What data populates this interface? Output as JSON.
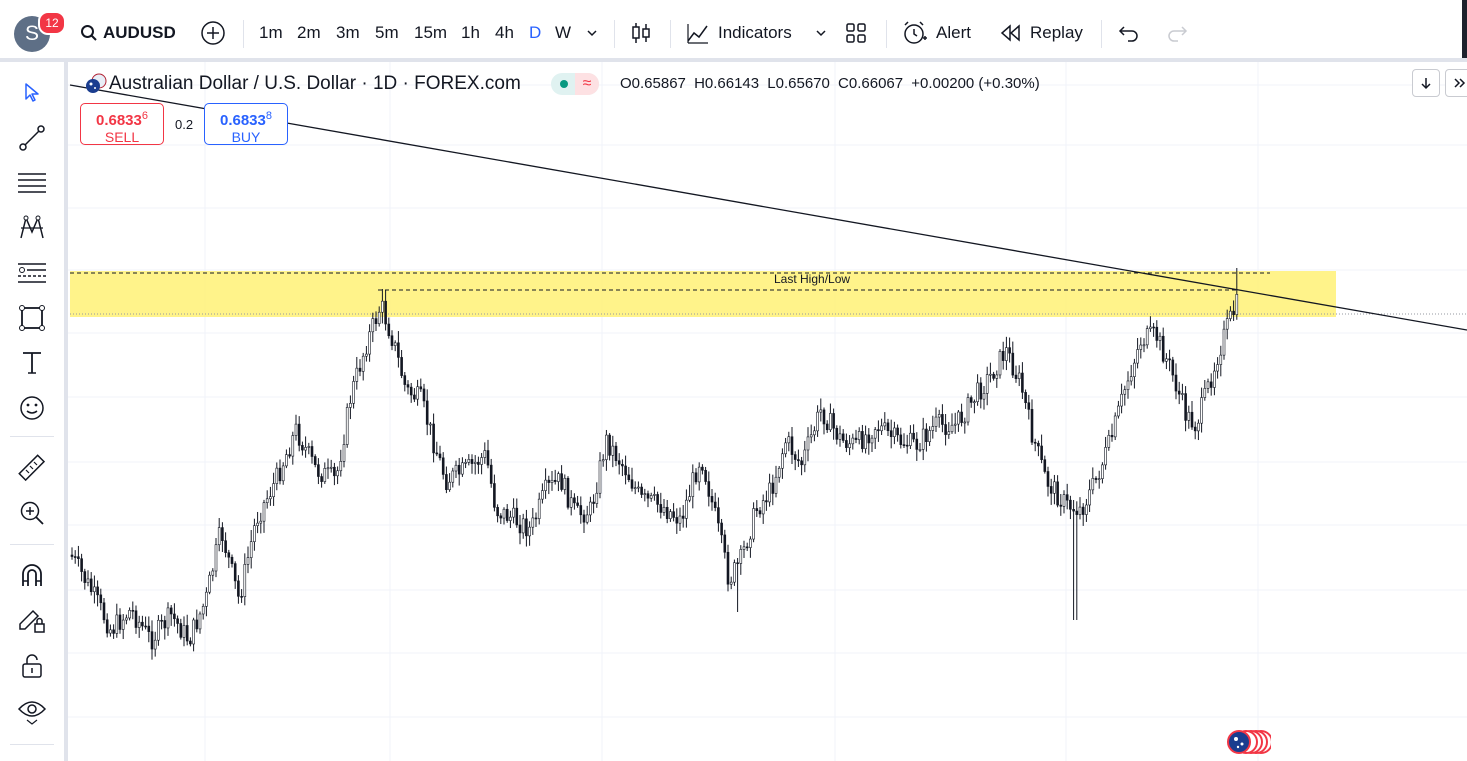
{
  "topbar": {
    "avatar_letter": "S",
    "notification_count": "12",
    "symbol": "AUDUSD",
    "timeframes": [
      "1m",
      "2m",
      "3m",
      "5m",
      "15m",
      "1h",
      "4h",
      "D",
      "W"
    ],
    "active_timeframe": "D",
    "indicators_label": "Indicators",
    "alert_label": "Alert",
    "replay_label": "Replay"
  },
  "legend": {
    "title": "Australian Dollar / U.S. Dollar · 1D · FOREX.com",
    "open": "O0.65867",
    "high": "H0.66143",
    "low": "L0.65670",
    "close": "C0.66067",
    "change": "+0.00200 (+0.30%)"
  },
  "trade": {
    "sell_price_main": "0.6833",
    "sell_price_sup": "6",
    "sell_label": "SELL",
    "spread": "0.2",
    "buy_price_main": "0.6833",
    "buy_price_sup": "8",
    "buy_label": "BUY"
  },
  "drawings": {
    "zone_label": "Last High/Low"
  },
  "colors": {
    "accent": "#2962ff",
    "sell": "#f23645",
    "zone": "#fff176",
    "candle": "#131722"
  },
  "icons": {
    "sidebar": [
      "cursor-icon",
      "trend-line-icon",
      "horizontal-lines-icon",
      "pattern-icon",
      "fib-icon",
      "rectangle-icon",
      "text-icon",
      "emoji-icon",
      "ruler-icon",
      "zoom-in-icon",
      "magnet-icon",
      "pencil-lock-icon",
      "lock-icon",
      "eye-icon"
    ]
  }
}
